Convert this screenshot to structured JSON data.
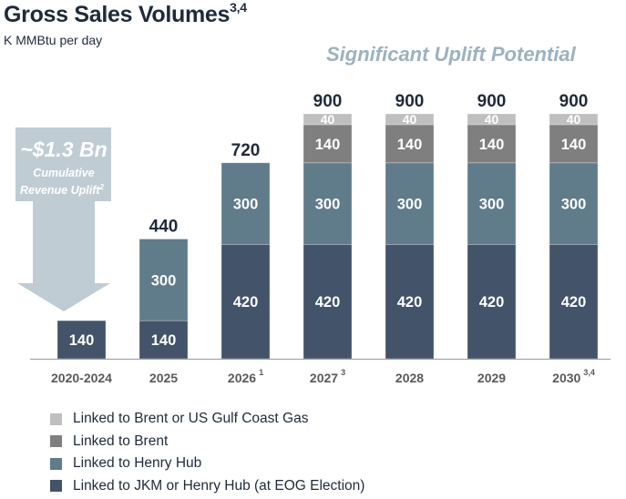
{
  "title": "Gross Sales Volumes",
  "title_superscript": "3,4",
  "subtitle": "K MMBtu per day",
  "annotation": "Significant Uplift Potential",
  "callout": {
    "headline": "~$1.3 Bn",
    "line1": "Cumulative",
    "line2": "Revenue Uplift",
    "line2_sup": "2"
  },
  "chart_data": {
    "type": "bar",
    "stacked": true,
    "title": "Gross Sales Volumes",
    "ylabel": "K MMBtu per day",
    "xlabel": "",
    "ylim": [
      0,
      900
    ],
    "grid": false,
    "legend_position": "bottom-left",
    "categories": [
      "2020-2024",
      "2025",
      "2026",
      "2027",
      "2028",
      "2029",
      "2030"
    ],
    "category_superscripts": [
      "",
      "",
      "1",
      "3",
      "",
      "",
      "3,4"
    ],
    "totals": [
      140,
      440,
      720,
      900,
      900,
      900,
      900
    ],
    "series": [
      {
        "name": "Linked to JKM or Henry Hub (at EOG Election)",
        "color": "#435369",
        "values": [
          140,
          140,
          420,
          420,
          420,
          420,
          420
        ]
      },
      {
        "name": "Linked to Henry Hub",
        "color": "#607b89",
        "values": [
          0,
          300,
          300,
          300,
          300,
          300,
          300
        ]
      },
      {
        "name": "Linked to Brent",
        "color": "#7f7f7f",
        "values": [
          0,
          0,
          0,
          140,
          140,
          140,
          140
        ]
      },
      {
        "name": "Linked to Brent or US Gulf Coast Gas",
        "color": "#bfbfbf",
        "values": [
          0,
          0,
          0,
          40,
          40,
          40,
          40
        ]
      }
    ]
  },
  "legend_order": [
    3,
    2,
    1,
    0
  ],
  "colors": {
    "text_dark": "#1f2a3a",
    "axis_label": "#595959",
    "callout_fill": "#c0ccd3",
    "accent_italic": "#9db1c0"
  }
}
